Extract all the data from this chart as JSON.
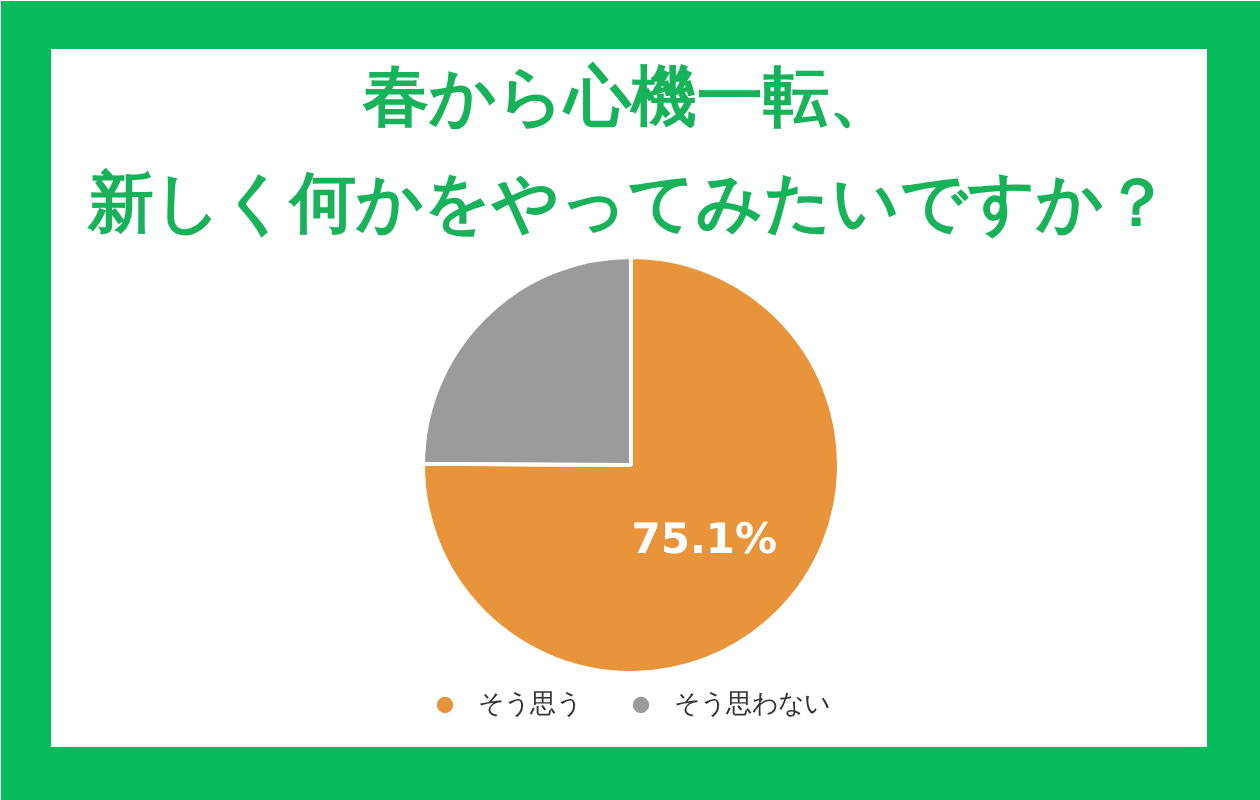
{
  "chart_data": {
    "type": "pie",
    "title": "春から心機一転、新しく何かをやってみたいですか？",
    "categories": [
      "そう思う",
      "そう思わない"
    ],
    "values": [
      75.1,
      24.9
    ],
    "colors": [
      "#e8943a",
      "#9b9b9b"
    ],
    "value_labels": [
      "75.1%",
      null
    ],
    "legend": "bottom"
  }
}
